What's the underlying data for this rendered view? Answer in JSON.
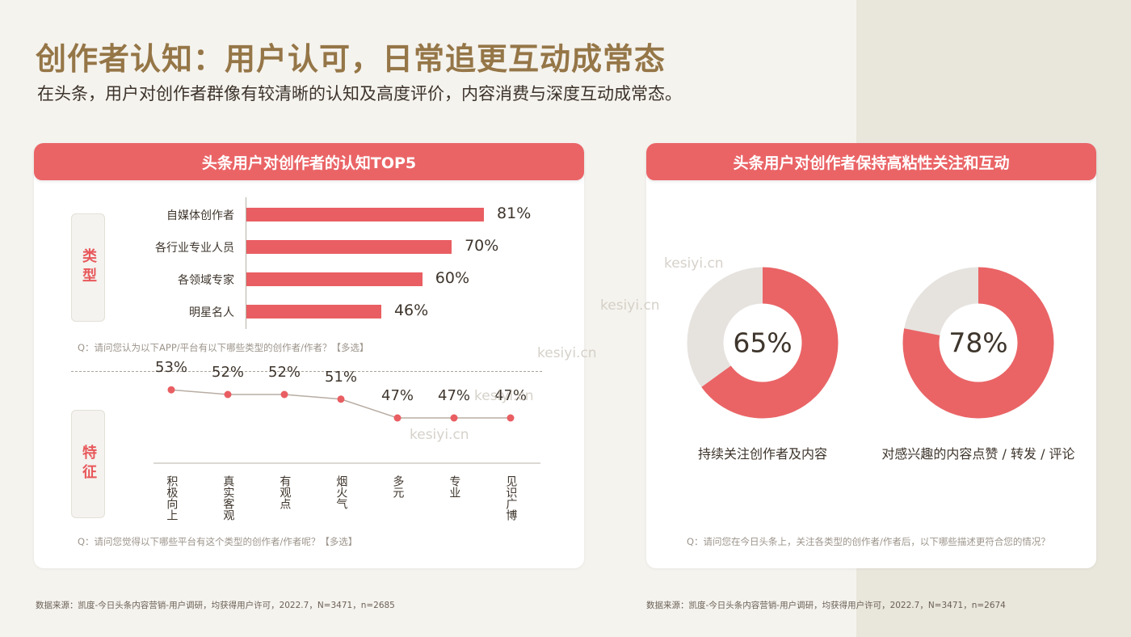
{
  "title": "创作者认知：用户认可，日常追更互动成常态",
  "subtitle": "在头条，用户对创作者群像有较清晰的认知及高度评价，内容消费与深度互动成常态。",
  "left_card": {
    "header": "头条用户对创作者的认知TOP5",
    "type_tag": "类型",
    "feature_tag": "特征",
    "bars": [
      {
        "label": "自媒体创作者",
        "value": "81%"
      },
      {
        "label": "各行业专业人员",
        "value": "70%"
      },
      {
        "label": "各领域专家",
        "value": "60%"
      },
      {
        "label": "明星名人",
        "value": "46%"
      }
    ],
    "question1": "Q：请问您认为以下APP/平台有以下哪些类型的创作者/作者？【多选】",
    "points": [
      {
        "label": "积极向上",
        "value": "53%"
      },
      {
        "label": "真实客观",
        "value": "52%"
      },
      {
        "label": "有观点",
        "value": "52%"
      },
      {
        "label": "烟火气",
        "value": "51%"
      },
      {
        "label": "多元",
        "value": "47%"
      },
      {
        "label": "专业",
        "value": "47%"
      },
      {
        "label": "见识广博",
        "value": "47%"
      }
    ],
    "question2": "Q：请问您觉得以下哪些平台有这个类型的创作者/作者呢？【多选】"
  },
  "right_card": {
    "header": "头条用户对创作者保持高粘性关注和互动",
    "donuts": [
      {
        "value": "65%",
        "label": "持续关注创作者及内容"
      },
      {
        "value": "78%",
        "label": "对感兴趣的内容点赞 / 转发 / 评论"
      }
    ],
    "question": "Q：请问您在今日头条上，关注各类型的创作者/作者后，以下哪些描述更符合您的情况？"
  },
  "source_left": "数据来源：凯度-今日头条内容营销-用户调研，均获得用户许可，2022.7，N=3471，n=2685",
  "source_right": "数据来源：凯度-今日头条内容营销-用户调研，均获得用户许可，2022.7，N=3471，n=2674",
  "watermark": "kesiyi.cn",
  "colors": {
    "accent": "#ea6466",
    "title": "#957647",
    "donut_rest": "#e6e3df"
  },
  "chart_data": [
    {
      "type": "bar",
      "categories": [
        "自媒体创作者",
        "各行业专业人员",
        "各领域专家",
        "明星名人"
      ],
      "values": [
        81,
        70,
        60,
        46
      ],
      "title": "头条用户对创作者的认知TOP5",
      "xlabel": "",
      "ylabel": ""
    },
    {
      "type": "line",
      "categories": [
        "积极向上",
        "真实客观",
        "有观点",
        "烟火气",
        "多元",
        "专业",
        "见识广博"
      ],
      "values": [
        53,
        52,
        52,
        51,
        47,
        47,
        47
      ],
      "xlabel": "",
      "ylabel": ""
    },
    {
      "type": "pie",
      "categories": [
        "持续关注创作者及内容"
      ],
      "values": [
        65
      ]
    },
    {
      "type": "pie",
      "categories": [
        "对感兴趣的内容点赞 / 转发 / 评论"
      ],
      "values": [
        78
      ]
    }
  ]
}
